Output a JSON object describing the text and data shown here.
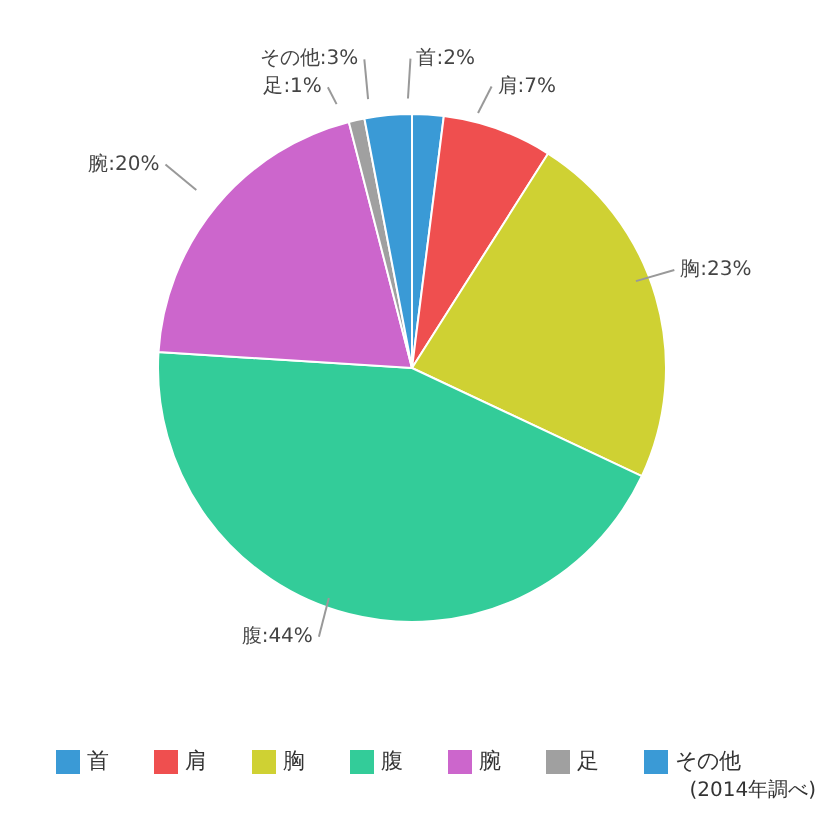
{
  "chart_data": {
    "type": "pie",
    "categories": [
      "首",
      "肩",
      "胸",
      "腹",
      "腕",
      "足",
      "その他"
    ],
    "values": [
      2,
      7,
      23,
      44,
      20,
      1,
      3
    ],
    "colors": [
      "#3a9ad6",
      "#ef4f4f",
      "#cfd133",
      "#33cc99",
      "#cc66cc",
      "#a0a0a0",
      "#3a9ad6"
    ],
    "value_labels": [
      "首:2%",
      "肩:7%",
      "胸:23%",
      "腹:44%",
      "腕:20%",
      "足:1%",
      "その他:3%"
    ],
    "legend": "bottom",
    "annotations": [
      "(2014年調べ)"
    ]
  }
}
